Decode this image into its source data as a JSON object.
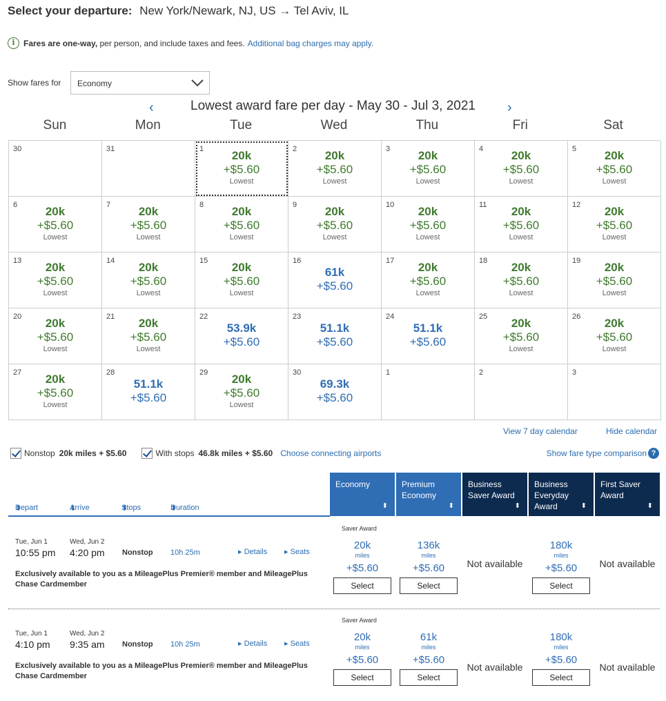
{
  "header": {
    "label": "Select your departure:",
    "route": "New York/Newark, NJ, US → Tel Aviv, IL"
  },
  "info": {
    "bold": "Fares are one-way,",
    "text": " per person, and include taxes and fees.",
    "link": "Additional bag charges may apply."
  },
  "fare_select": {
    "label": "Show fares for",
    "value": "Economy"
  },
  "calendar": {
    "title": "Lowest award fare per day - May 30 - Jul 3, 2021",
    "prev": "‹",
    "next": "›",
    "days_of_week": [
      "Sun",
      "Mon",
      "Tue",
      "Wed",
      "Thu",
      "Fri",
      "Sat"
    ],
    "cells": [
      {
        "day": "30",
        "miles": "",
        "fee": "",
        "note": "",
        "kind": "empty"
      },
      {
        "day": "31",
        "miles": "",
        "fee": "",
        "note": "",
        "kind": "empty"
      },
      {
        "day": "1",
        "miles": "20k",
        "fee": "+$5.60",
        "note": "Lowest",
        "kind": "low",
        "selected": true
      },
      {
        "day": "2",
        "miles": "20k",
        "fee": "+$5.60",
        "note": "Lowest",
        "kind": "low"
      },
      {
        "day": "3",
        "miles": "20k",
        "fee": "+$5.60",
        "note": "Lowest",
        "kind": "low"
      },
      {
        "day": "4",
        "miles": "20k",
        "fee": "+$5.60",
        "note": "Lowest",
        "kind": "low"
      },
      {
        "day": "5",
        "miles": "20k",
        "fee": "+$5.60",
        "note": "Lowest",
        "kind": "low"
      },
      {
        "day": "6",
        "miles": "20k",
        "fee": "+$5.60",
        "note": "Lowest",
        "kind": "low"
      },
      {
        "day": "7",
        "miles": "20k",
        "fee": "+$5.60",
        "note": "Lowest",
        "kind": "low"
      },
      {
        "day": "8",
        "miles": "20k",
        "fee": "+$5.60",
        "note": "Lowest",
        "kind": "low"
      },
      {
        "day": "9",
        "miles": "20k",
        "fee": "+$5.60",
        "note": "Lowest",
        "kind": "low"
      },
      {
        "day": "10",
        "miles": "20k",
        "fee": "+$5.60",
        "note": "Lowest",
        "kind": "low"
      },
      {
        "day": "11",
        "miles": "20k",
        "fee": "+$5.60",
        "note": "Lowest",
        "kind": "low"
      },
      {
        "day": "12",
        "miles": "20k",
        "fee": "+$5.60",
        "note": "Lowest",
        "kind": "low"
      },
      {
        "day": "13",
        "miles": "20k",
        "fee": "+$5.60",
        "note": "Lowest",
        "kind": "low"
      },
      {
        "day": "14",
        "miles": "20k",
        "fee": "+$5.60",
        "note": "Lowest",
        "kind": "low"
      },
      {
        "day": "15",
        "miles": "20k",
        "fee": "+$5.60",
        "note": "Lowest",
        "kind": "low"
      },
      {
        "day": "16",
        "miles": "61k",
        "fee": "+$5.60",
        "note": "",
        "kind": "hi"
      },
      {
        "day": "17",
        "miles": "20k",
        "fee": "+$5.60",
        "note": "Lowest",
        "kind": "low"
      },
      {
        "day": "18",
        "miles": "20k",
        "fee": "+$5.60",
        "note": "Lowest",
        "kind": "low"
      },
      {
        "day": "19",
        "miles": "20k",
        "fee": "+$5.60",
        "note": "Lowest",
        "kind": "low"
      },
      {
        "day": "20",
        "miles": "20k",
        "fee": "+$5.60",
        "note": "Lowest",
        "kind": "low"
      },
      {
        "day": "21",
        "miles": "20k",
        "fee": "+$5.60",
        "note": "Lowest",
        "kind": "low"
      },
      {
        "day": "22",
        "miles": "53.9k",
        "fee": "+$5.60",
        "note": "",
        "kind": "hi"
      },
      {
        "day": "23",
        "miles": "51.1k",
        "fee": "+$5.60",
        "note": "",
        "kind": "hi"
      },
      {
        "day": "24",
        "miles": "51.1k",
        "fee": "+$5.60",
        "note": "",
        "kind": "hi"
      },
      {
        "day": "25",
        "miles": "20k",
        "fee": "+$5.60",
        "note": "Lowest",
        "kind": "low"
      },
      {
        "day": "26",
        "miles": "20k",
        "fee": "+$5.60",
        "note": "Lowest",
        "kind": "low"
      },
      {
        "day": "27",
        "miles": "20k",
        "fee": "+$5.60",
        "note": "Lowest",
        "kind": "low"
      },
      {
        "day": "28",
        "miles": "51.1k",
        "fee": "+$5.60",
        "note": "",
        "kind": "hi"
      },
      {
        "day": "29",
        "miles": "20k",
        "fee": "+$5.60",
        "note": "Lowest",
        "kind": "low"
      },
      {
        "day": "30",
        "miles": "69.3k",
        "fee": "+$5.60",
        "note": "",
        "kind": "hi"
      },
      {
        "day": "1",
        "miles": "",
        "fee": "",
        "note": "",
        "kind": "empty"
      },
      {
        "day": "2",
        "miles": "",
        "fee": "",
        "note": "",
        "kind": "empty"
      },
      {
        "day": "3",
        "miles": "",
        "fee": "",
        "note": "",
        "kind": "empty"
      }
    ],
    "view7": "View 7 day calendar",
    "hide": "Hide calendar"
  },
  "filters": {
    "nonstop_label": "Nonstop",
    "nonstop_price": "20k miles + $5.60",
    "stops_label": "With stops",
    "stops_price": "46.8k miles + $5.60",
    "connecting": "Choose connecting airports",
    "fare_type": "Show fare type comparison",
    "help": "?"
  },
  "columns": {
    "depart": "Depart",
    "arrive": "Arrive",
    "stops": "Stops",
    "duration": "Duration",
    "sort_icon": "⬍",
    "cabins": [
      "Economy",
      "Premium Economy",
      "Business Saver Award",
      "Business Everyday Award",
      "First Saver Award"
    ]
  },
  "flights": [
    {
      "dep_date": "Tue, Jun 1",
      "dep_time": "10:55 pm",
      "arr_date": "Wed, Jun 2",
      "arr_time": "4:20 pm",
      "stops": "Nonstop",
      "duration": "10h 25m",
      "details": "Details",
      "seats": "Seats",
      "saver": "Saver Award",
      "exclusive": "Exclusively available to you as a MileagePlus Premier® member and MileagePlus Chase Cardmember",
      "econ": {
        "miles": "20k",
        "unit": "miles",
        "fee": "+$5.60",
        "btn": "Select"
      },
      "prem": {
        "miles": "136k",
        "unit": "miles",
        "fee": "+$5.60",
        "btn": "Select"
      },
      "bsaver": "Not available",
      "bevery": {
        "miles": "180k",
        "unit": "miles",
        "fee": "+$5.60",
        "btn": "Select"
      },
      "first": "Not available"
    },
    {
      "dep_date": "Tue, Jun 1",
      "dep_time": "4:10 pm",
      "arr_date": "Wed, Jun 2",
      "arr_time": "9:35 am",
      "stops": "Nonstop",
      "duration": "10h 25m",
      "details": "Details",
      "seats": "Seats",
      "saver": "Saver Award",
      "exclusive": "Exclusively available to you as a MileagePlus Premier® member and MileagePlus Chase Cardmember",
      "econ": {
        "miles": "20k",
        "unit": "miles",
        "fee": "+$5.60",
        "btn": "Select"
      },
      "prem": {
        "miles": "61k",
        "unit": "miles",
        "fee": "+$5.60",
        "btn": "Select"
      },
      "bsaver": "Not available",
      "bevery": {
        "miles": "180k",
        "unit": "miles",
        "fee": "+$5.60",
        "btn": "Select"
      },
      "first": "Not available"
    }
  ]
}
